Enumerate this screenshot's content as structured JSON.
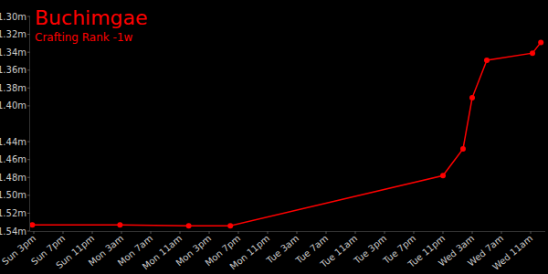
{
  "chart_data": {
    "type": "line",
    "title": "Buchimgae",
    "subtitle": "Crafting Rank -1w",
    "x": [
      14.8,
      26.8,
      36.2,
      41.9,
      71,
      73.75,
      75,
      77,
      83.25,
      84.4
    ],
    "values": [
      1.533,
      1.533,
      1.534,
      1.534,
      1.478,
      1.448,
      1.391,
      1.349,
      1.341,
      1.329
    ],
    "color": "#ff0000",
    "marker": "circle",
    "line_style": "solid",
    "xlim": [
      14.5,
      85
    ],
    "xticks": [
      {
        "value": 15,
        "label": "Sun 3pm"
      },
      {
        "value": 19,
        "label": "Sun 7pm"
      },
      {
        "value": 23,
        "label": "Sun 11pm"
      },
      {
        "value": 27,
        "label": "Mon 3am"
      },
      {
        "value": 31,
        "label": "Mon 7am"
      },
      {
        "value": 35,
        "label": "Mon 11am"
      },
      {
        "value": 39,
        "label": "Mon 3pm"
      },
      {
        "value": 43,
        "label": "Mon 7pm"
      },
      {
        "value": 47,
        "label": "Mon 11pm"
      },
      {
        "value": 51,
        "label": "Tue 3am"
      },
      {
        "value": 55,
        "label": "Tue 7am"
      },
      {
        "value": 59,
        "label": "Tue 11am"
      },
      {
        "value": 63,
        "label": "Tue 3pm"
      },
      {
        "value": 67,
        "label": "Tue 7pm"
      },
      {
        "value": 71,
        "label": "Tue 11pm"
      },
      {
        "value": 75,
        "label": "Wed 3am"
      },
      {
        "value": 79,
        "label": "Wed 7am"
      },
      {
        "value": 83,
        "label": "Wed 11am"
      }
    ],
    "ylim": [
      1.54,
      1.3
    ],
    "yticks": [
      {
        "value": 1.3,
        "label": "1.30m"
      },
      {
        "value": 1.32,
        "label": "1.32m"
      },
      {
        "value": 1.34,
        "label": "1.34m"
      },
      {
        "value": 1.36,
        "label": "1.36m"
      },
      {
        "value": 1.38,
        "label": "1.38m"
      },
      {
        "value": 1.4,
        "label": "1.40m"
      },
      {
        "value": 1.44,
        "label": "1.44m"
      },
      {
        "value": 1.46,
        "label": "1.46m"
      },
      {
        "value": 1.48,
        "label": "1.48m"
      },
      {
        "value": 1.5,
        "label": "1.50m"
      },
      {
        "value": 1.52,
        "label": "1.52m"
      },
      {
        "value": 1.54,
        "label": "1.54m"
      }
    ],
    "grid": false
  }
}
